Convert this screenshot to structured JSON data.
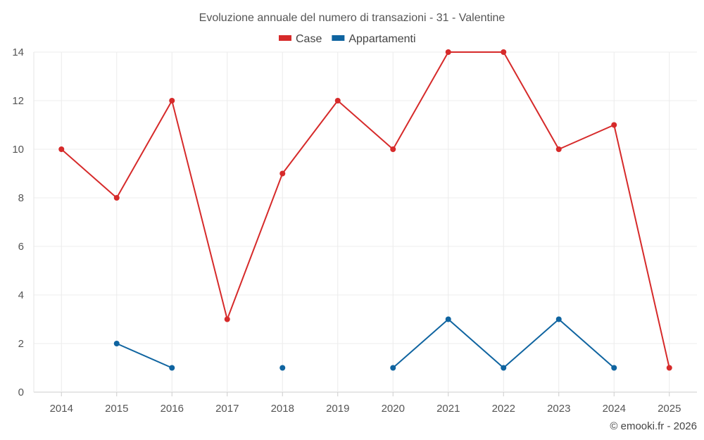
{
  "chart_data": {
    "type": "line",
    "title": "Evoluzione annuale del numero di transazioni - 31 - Valentine",
    "categories": [
      "2014",
      "2015",
      "2016",
      "2017",
      "2018",
      "2019",
      "2020",
      "2021",
      "2022",
      "2023",
      "2024",
      "2025"
    ],
    "ylim": [
      0,
      14
    ],
    "yticks": [
      0,
      2,
      4,
      6,
      8,
      10,
      12,
      14
    ],
    "grid": true,
    "legend_position": "top",
    "series": [
      {
        "name": "Case",
        "color": "#d62a2a",
        "values": [
          10,
          8,
          12,
          3,
          9,
          12,
          10,
          14,
          14,
          10,
          11,
          1
        ]
      },
      {
        "name": "Appartamenti",
        "color": "#0f64a0",
        "values": [
          null,
          2,
          1,
          null,
          1,
          null,
          1,
          3,
          1,
          3,
          1,
          null
        ]
      }
    ],
    "credit": "© emooki.fr - 2026"
  }
}
